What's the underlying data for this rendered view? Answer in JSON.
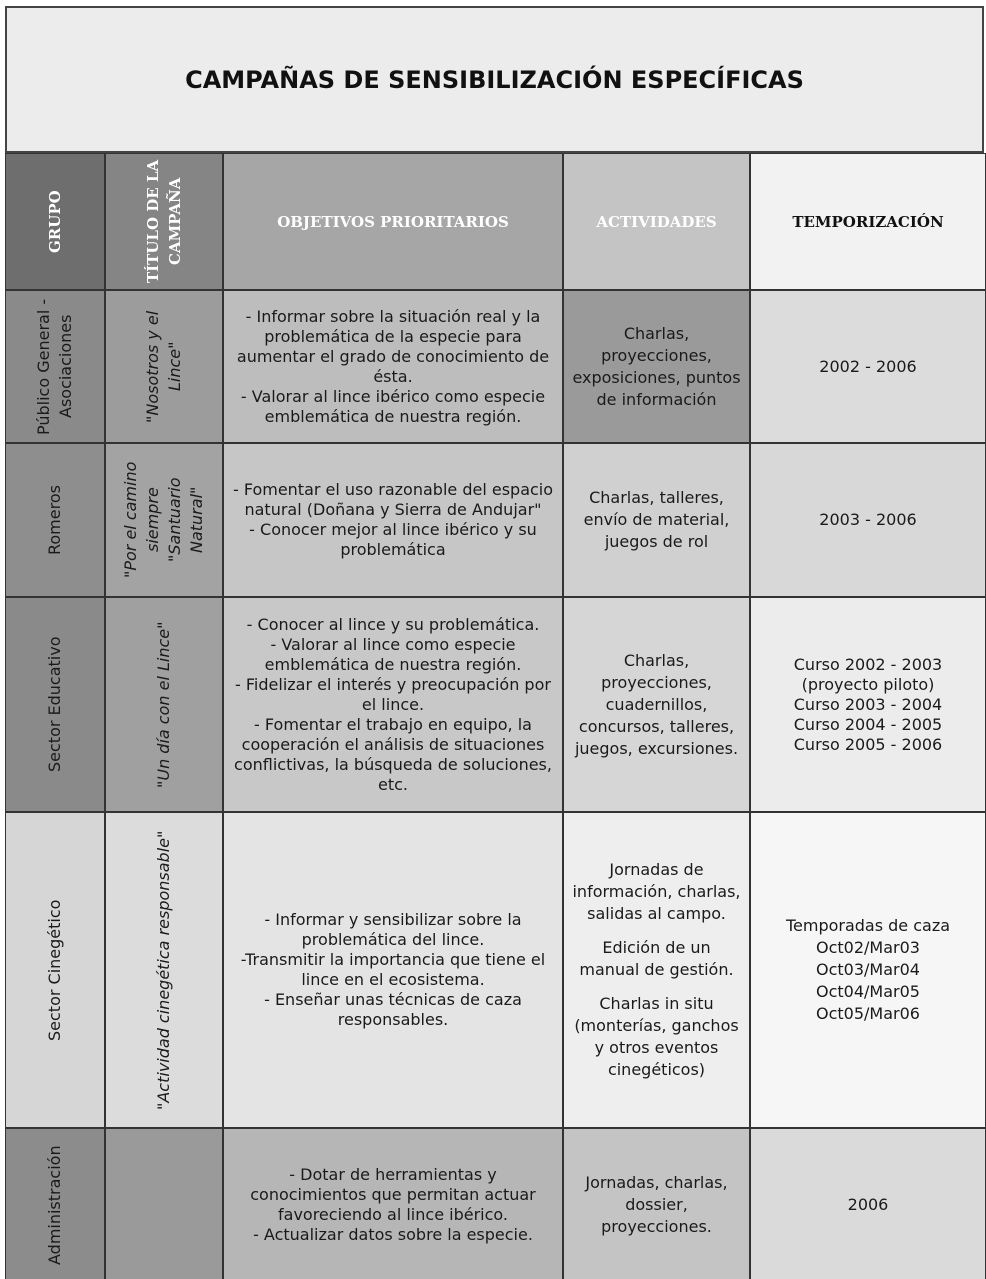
{
  "header": {
    "title": "CAMPAÑAS DE SENSIBILIZACIÓN ESPECÍFICAS"
  },
  "table": {
    "columns": [
      "GRUPO",
      "TÍTULO DE LA CAMPAÑA",
      "OBJETIVOS PRIORITARIOS",
      "ACTIVIDADES",
      "TEMPORIZACIÓN"
    ],
    "rows": [
      {
        "group": "Público General - Asociaciones",
        "campaign": "\"Nosotros y el Lince\"",
        "objectives": [
          "- Informar sobre la situación real y la problemática de la especie para aumentar el grado de conocimiento de ésta.",
          "- Valorar al lince ibérico como especie emblemática de nuestra región."
        ],
        "activities": [
          "Charlas, proyecciones, exposiciones, puntos de información"
        ],
        "timing": [
          "2002 - 2006"
        ]
      },
      {
        "group": "Romeros",
        "campaign": "\"Por el camino siempre \"Santuario Natural\"",
        "objectives": [
          "- Fomentar el uso razonable del espacio natural (Doñana y Sierra de Andujar\"",
          "- Conocer mejor al lince ibérico y su problemática"
        ],
        "activities": [
          "Charlas, talleres, envío de material, juegos de rol"
        ],
        "timing": [
          "2003 - 2006"
        ]
      },
      {
        "group": "Sector Educativo",
        "campaign": "\"Un día con el Lince\"",
        "objectives": [
          "- Conocer al lince y su problemática.",
          "- Valorar al lince como especie emblemática de nuestra región.",
          "- Fidelizar el interés y preocupación por el lince.",
          "- Fomentar el trabajo en equipo, la cooperación el análisis de situaciones conflictivas, la búsqueda de soluciones, etc."
        ],
        "activities": [
          "Charlas, proyecciones, cuadernillos, concursos, talleres, juegos, excursiones."
        ],
        "timing": [
          "Curso 2002 - 2003",
          "(proyecto piloto)",
          "Curso 2003 - 2004",
          "Curso 2004 - 2005",
          "Curso 2005 - 2006"
        ]
      },
      {
        "group": "Sector Cinegético",
        "campaign": "\"Actividad cinegética responsable\"",
        "objectives": [
          "- Informar y sensibilizar sobre la problemática del lince.",
          "-Transmitir la importancia que tiene el lince en el ecosistema.",
          "- Enseñar unas técnicas de caza responsables."
        ],
        "activities": [
          "Jornadas de información, charlas, salidas al campo.",
          "Edición de un manual de gestión.",
          "Charlas in situ (monterías, ganchos y otros eventos cinegéticos)"
        ],
        "timing": [
          "Temporadas de caza",
          "Oct02/Mar03",
          "Oct03/Mar04",
          "Oct04/Mar05",
          "Oct05/Mar06"
        ]
      },
      {
        "group": "Administración",
        "objectives": [
          "- Dotar de herramientas y conocimientos que permitan actuar favoreciendo al lince ibérico.",
          "- Actualizar datos sobre la especie."
        ],
        "activities": [
          "Jornadas, charlas, dossier, proyecciones."
        ],
        "timing": [
          "2006"
        ]
      }
    ]
  }
}
